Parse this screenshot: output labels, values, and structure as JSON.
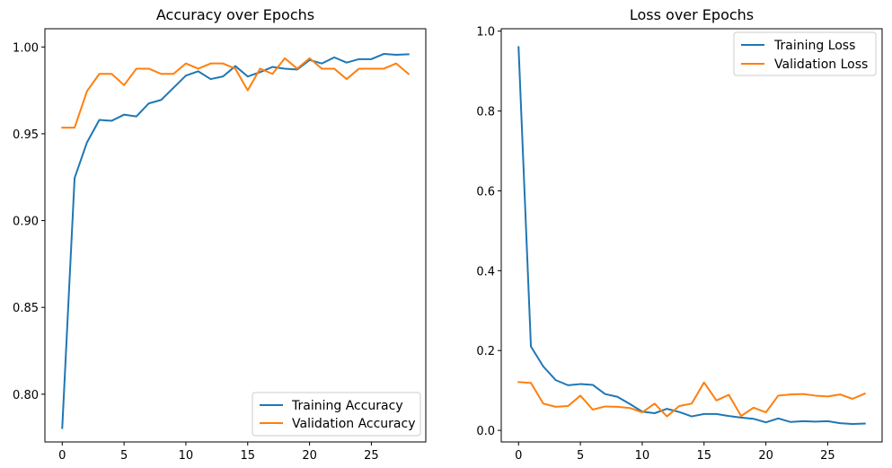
{
  "chart_data": [
    {
      "type": "line",
      "title": "Accuracy over Epochs",
      "xlabel": "",
      "ylabel": "",
      "xlim": [
        -1.4,
        29.4
      ],
      "ylim": [
        0.7725,
        1.0105
      ],
      "xticks": [
        0,
        5,
        10,
        15,
        20,
        25
      ],
      "xtick_labels": [
        "0",
        "5",
        "10",
        "15",
        "20",
        "25"
      ],
      "yticks": [
        0.8,
        0.85,
        0.9,
        0.95,
        1.0
      ],
      "ytick_labels": [
        "0.80",
        "0.85",
        "0.90",
        "0.95",
        "1.00"
      ],
      "x": [
        0,
        1,
        2,
        3,
        4,
        5,
        6,
        7,
        8,
        9,
        10,
        11,
        12,
        13,
        14,
        15,
        16,
        17,
        18,
        19,
        20,
        21,
        22,
        23,
        24,
        25,
        26,
        27,
        28
      ],
      "series": [
        {
          "name": "Training Accuracy",
          "color": "#1f77b4",
          "values": [
            0.7805,
            0.9245,
            0.945,
            0.958,
            0.9575,
            0.961,
            0.96,
            0.9675,
            0.9695,
            0.9765,
            0.9835,
            0.986,
            0.9815,
            0.983,
            0.989,
            0.983,
            0.9855,
            0.9885,
            0.9875,
            0.987,
            0.9925,
            0.9905,
            0.994,
            0.991,
            0.993,
            0.993,
            0.996,
            0.9955,
            0.9958
          ]
        },
        {
          "name": "Validation Accuracy",
          "color": "#ff7f0e",
          "values": [
            0.9535,
            0.9535,
            0.9745,
            0.9845,
            0.9845,
            0.978,
            0.9875,
            0.9875,
            0.9845,
            0.9845,
            0.9905,
            0.9875,
            0.9905,
            0.9905,
            0.9875,
            0.975,
            0.9875,
            0.9845,
            0.9935,
            0.9875,
            0.9935,
            0.9875,
            0.9875,
            0.9815,
            0.9875,
            0.9875,
            0.9875,
            0.9905,
            0.9845
          ]
        }
      ],
      "legend": "lower-right",
      "grid": false
    },
    {
      "type": "line",
      "title": "Loss over Epochs",
      "xlabel": "",
      "ylabel": "",
      "xlim": [
        -1.4,
        29.4
      ],
      "ylim": [
        -0.029,
        1.006
      ],
      "xticks": [
        0,
        5,
        10,
        15,
        20,
        25
      ],
      "xtick_labels": [
        "0",
        "5",
        "10",
        "15",
        "20",
        "25"
      ],
      "yticks": [
        0.0,
        0.2,
        0.4,
        0.6,
        0.8,
        1.0
      ],
      "ytick_labels": [
        "0.0",
        "0.2",
        "0.4",
        "0.6",
        "0.8",
        "1.0"
      ],
      "x": [
        0,
        1,
        2,
        3,
        4,
        5,
        6,
        7,
        8,
        9,
        10,
        11,
        12,
        13,
        14,
        15,
        16,
        17,
        18,
        19,
        20,
        21,
        22,
        23,
        24,
        25,
        26,
        27,
        28
      ],
      "series": [
        {
          "name": "Training Loss",
          "color": "#1f77b4",
          "values": [
            0.96,
            0.21,
            0.16,
            0.126,
            0.113,
            0.116,
            0.114,
            0.091,
            0.084,
            0.066,
            0.047,
            0.043,
            0.054,
            0.046,
            0.035,
            0.041,
            0.041,
            0.036,
            0.032,
            0.029,
            0.02,
            0.03,
            0.021,
            0.023,
            0.022,
            0.023,
            0.018,
            0.016,
            0.017
          ]
        },
        {
          "name": "Validation Loss",
          "color": "#ff7f0e",
          "values": [
            0.121,
            0.119,
            0.067,
            0.059,
            0.061,
            0.087,
            0.052,
            0.06,
            0.059,
            0.056,
            0.045,
            0.067,
            0.035,
            0.061,
            0.067,
            0.12,
            0.075,
            0.089,
            0.036,
            0.057,
            0.045,
            0.087,
            0.09,
            0.091,
            0.087,
            0.085,
            0.09,
            0.079,
            0.092
          ]
        }
      ],
      "legend": "upper-right",
      "grid": false
    }
  ]
}
